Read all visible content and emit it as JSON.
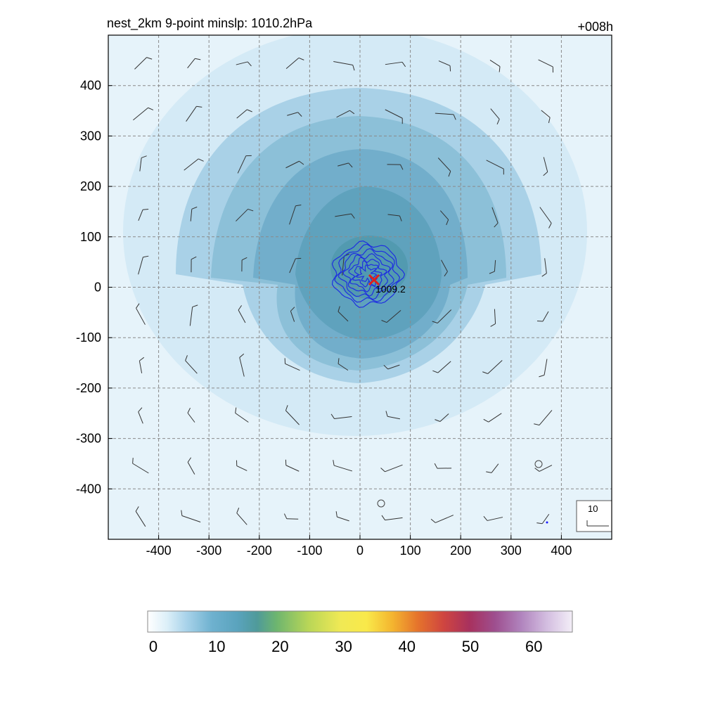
{
  "title_left": "nest_2km  9-point minslp: 1010.2hPa",
  "title_right": "+008h",
  "center_label": "1009.2",
  "ref_vector_label": "10",
  "chart_data": {
    "type": "heatmap",
    "title": "nest_2km  9-point minslp: 1010.2hPa",
    "forecast_hour": "+008h",
    "x_range": [
      -500,
      500
    ],
    "y_range": [
      -500,
      500
    ],
    "x_ticks": [
      -400,
      -300,
      -200,
      -100,
      0,
      100,
      200,
      300,
      400
    ],
    "y_ticks": [
      400,
      300,
      200,
      100,
      0,
      -100,
      -200,
      -300,
      -400
    ],
    "grid": true,
    "colorbar": {
      "ticks": [
        0,
        10,
        20,
        30,
        40,
        50,
        60
      ],
      "min": 0,
      "max": 66,
      "orientation": "horizontal",
      "stops": [
        [
          0,
          "#ffffff"
        ],
        [
          3,
          "#dceff8"
        ],
        [
          6,
          "#a9d3ea"
        ],
        [
          10,
          "#6eb1cf"
        ],
        [
          14,
          "#5aa3bd"
        ],
        [
          17,
          "#4f9a9a"
        ],
        [
          20,
          "#6db56f"
        ],
        [
          25,
          "#b9d657"
        ],
        [
          30,
          "#f0e955"
        ],
        [
          34,
          "#f9e94a"
        ],
        [
          38,
          "#f4b52f"
        ],
        [
          42,
          "#e5732c"
        ],
        [
          46,
          "#cf4540"
        ],
        [
          50,
          "#a8315e"
        ],
        [
          54,
          "#9e4f8f"
        ],
        [
          58,
          "#b083bd"
        ],
        [
          62,
          "#d3bde0"
        ],
        [
          66,
          "#f3eef7"
        ]
      ]
    },
    "storm_center": {
      "x": 28,
      "y": 15,
      "min_slp_label": "1009.2"
    },
    "reference_vector": 10
  }
}
